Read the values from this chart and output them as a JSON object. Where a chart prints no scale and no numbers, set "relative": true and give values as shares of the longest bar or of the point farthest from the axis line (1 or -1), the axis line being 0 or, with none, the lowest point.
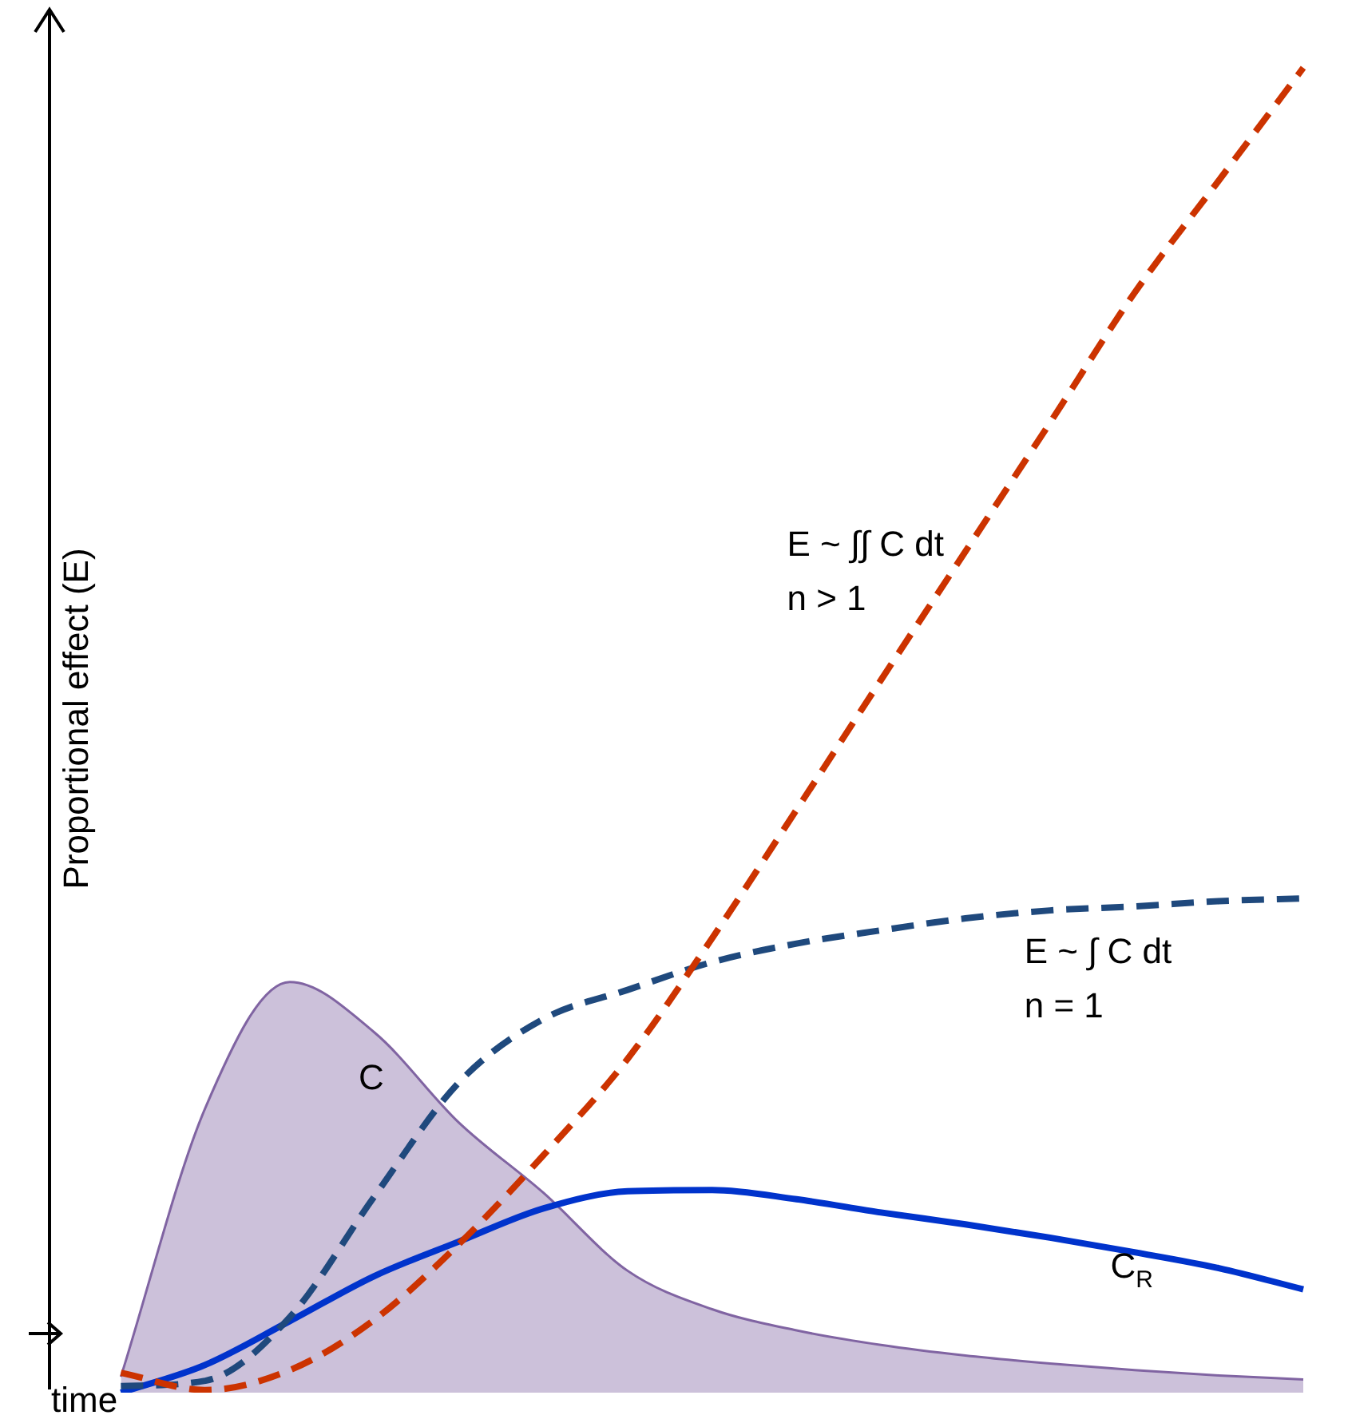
{
  "chart_data": {
    "type": "line",
    "relative": true,
    "xlabel": "time",
    "ylabel": "Proportional effect (E)",
    "legend": false,
    "categories": [
      null,
      null,
      null,
      null,
      null,
      null,
      null,
      null,
      null,
      null,
      null,
      null,
      null,
      null,
      null
    ],
    "series": [
      {
        "name": "C",
        "type": "area",
        "color": "#8064a2",
        "values": [
          0.012,
          0.215,
          0.31,
          0.272,
          0.204,
          0.151,
          0.092,
          0.063,
          0.047,
          0.036,
          0.028,
          0.022,
          0.017,
          0.013,
          0.01
        ]
      },
      {
        "name": "E ~ ∫∫ C dt\nn > 1",
        "type": "line",
        "line_style": "dashed",
        "color": "#cc3300",
        "values": [
          0.015,
          0.002,
          0.017,
          0.055,
          0.112,
          0.179,
          0.252,
          0.343,
          0.44,
          0.538,
          0.635,
          0.732,
          0.83,
          0.915,
          1
        ]
      },
      {
        "name": "E ~ ∫ C dt\nn = 1",
        "type": "line",
        "line_style": "dashed",
        "color": "#1f497d",
        "values": [
          0.005,
          0.009,
          0.057,
          0.148,
          0.234,
          0.282,
          0.304,
          0.325,
          0.339,
          0.349,
          0.358,
          0.364,
          0.367,
          0.371,
          0.373
        ]
      },
      {
        "name": "C$_{R}$",
        "type": "line",
        "line_style": "solid",
        "color": "#0033cc",
        "values": [
          0,
          0.021,
          0.054,
          0.088,
          0.114,
          0.139,
          0.152,
          0.153,
          0.146,
          0.136,
          0.127,
          0.117,
          0.106,
          0.094,
          0.078
        ]
      }
    ]
  }
}
